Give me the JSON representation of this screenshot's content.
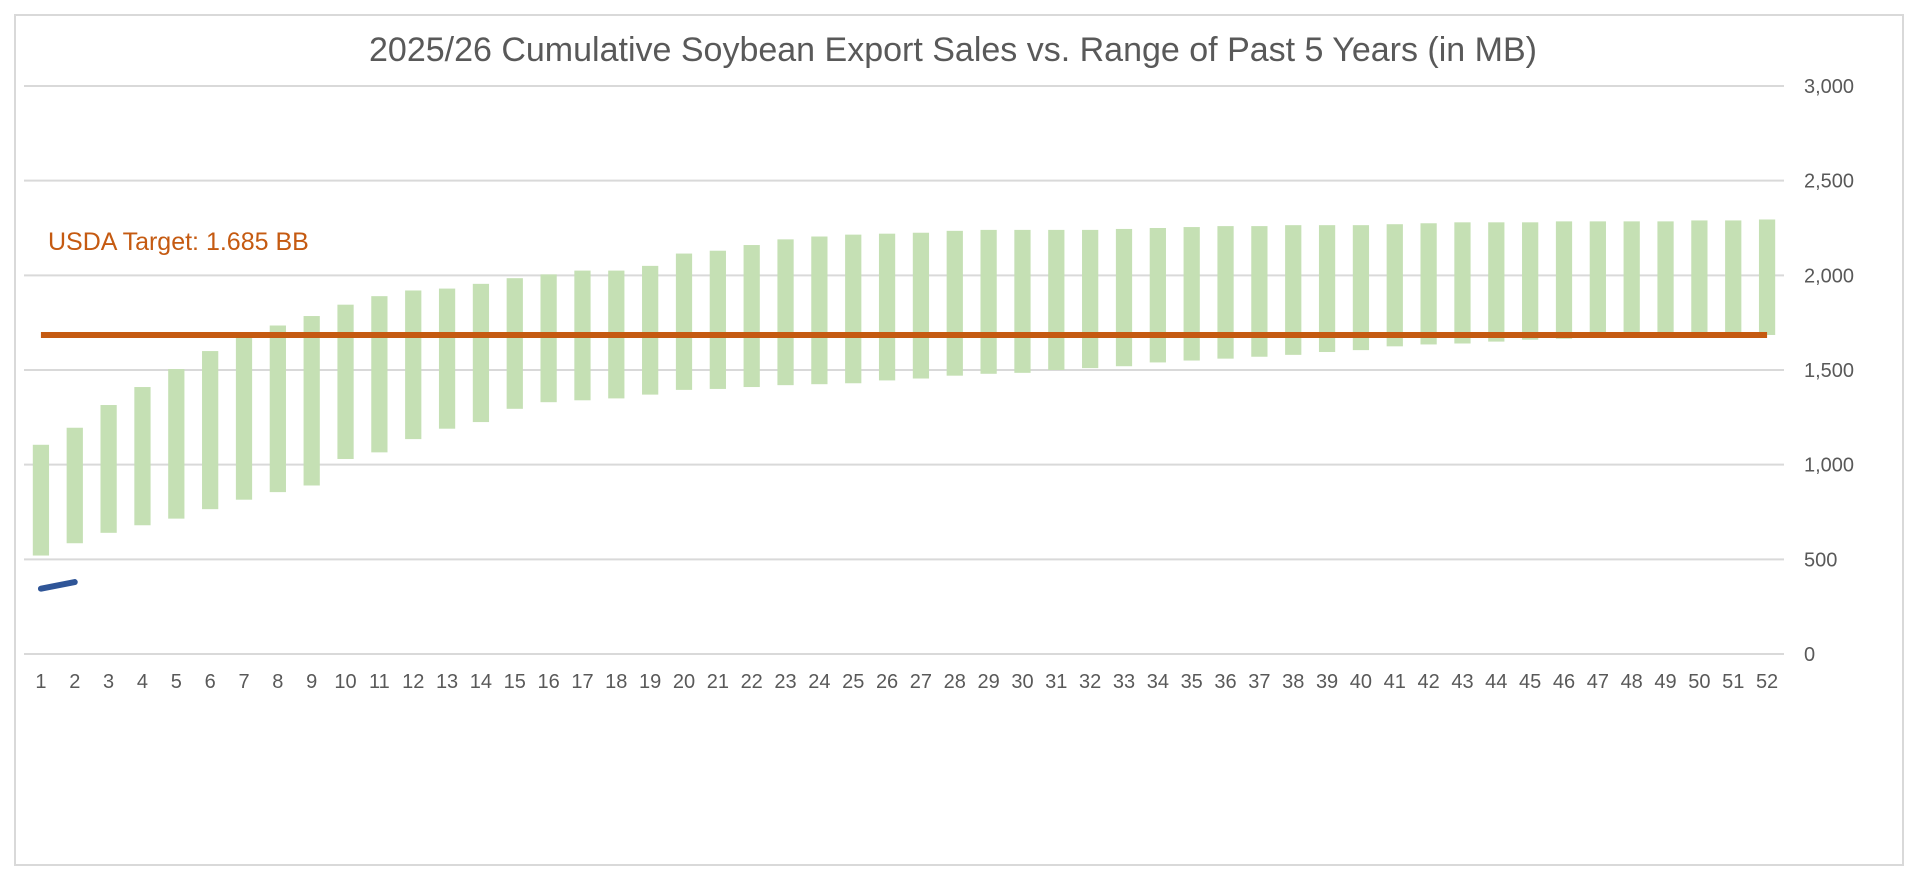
{
  "chart_data": {
    "type": "bar",
    "title": "2025/26 Cumulative Soybean Export Sales vs. Range of Past 5 Years (in MB)",
    "xlabel": "",
    "ylabel": "",
    "ylim": [
      0,
      3000
    ],
    "y_ticks": [
      0,
      500,
      1000,
      1500,
      2000,
      2500,
      3000
    ],
    "y_tick_labels": [
      "0",
      "500",
      "1,000",
      "1,500",
      "2,000",
      "2,500",
      "3,000"
    ],
    "y_axis_side": "right",
    "grid": true,
    "categories": [
      "1",
      "2",
      "3",
      "4",
      "5",
      "6",
      "7",
      "8",
      "9",
      "10",
      "11",
      "12",
      "13",
      "14",
      "15",
      "16",
      "17",
      "18",
      "19",
      "20",
      "21",
      "22",
      "23",
      "24",
      "25",
      "26",
      "27",
      "28",
      "29",
      "30",
      "31",
      "32",
      "33",
      "34",
      "35",
      "36",
      "37",
      "38",
      "39",
      "40",
      "41",
      "42",
      "43",
      "44",
      "45",
      "46",
      "47",
      "48",
      "49",
      "50",
      "51",
      "52"
    ],
    "range_low": [
      520,
      585,
      640,
      680,
      715,
      765,
      815,
      855,
      890,
      1030,
      1065,
      1135,
      1190,
      1225,
      1295,
      1330,
      1340,
      1350,
      1370,
      1395,
      1400,
      1410,
      1420,
      1425,
      1430,
      1445,
      1455,
      1470,
      1480,
      1485,
      1500,
      1510,
      1520,
      1540,
      1550,
      1560,
      1570,
      1580,
      1595,
      1605,
      1625,
      1635,
      1640,
      1650,
      1660,
      1665,
      1670,
      1675,
      1675,
      1680,
      1680,
      1685
    ],
    "range_high": [
      1105,
      1195,
      1315,
      1410,
      1505,
      1600,
      1695,
      1735,
      1785,
      1845,
      1890,
      1920,
      1930,
      1955,
      1985,
      2005,
      2025,
      2025,
      2050,
      2115,
      2130,
      2160,
      2190,
      2205,
      2215,
      2220,
      2225,
      2235,
      2240,
      2240,
      2240,
      2240,
      2245,
      2250,
      2255,
      2260,
      2260,
      2265,
      2265,
      2265,
      2270,
      2275,
      2280,
      2280,
      2280,
      2285,
      2285,
      2285,
      2285,
      2290,
      2290,
      2295
    ],
    "current_year": {
      "x": [
        1,
        2
      ],
      "values": [
        345,
        380
      ]
    },
    "target_line": {
      "value": 1685,
      "label": "USDA Target: 1.685 BB"
    },
    "colors": {
      "range_bar": "#c5e0b4",
      "current_line": "#2f5597",
      "target_line": "#c55a11",
      "grid": "#d9d9d9",
      "text": "#595959"
    }
  }
}
